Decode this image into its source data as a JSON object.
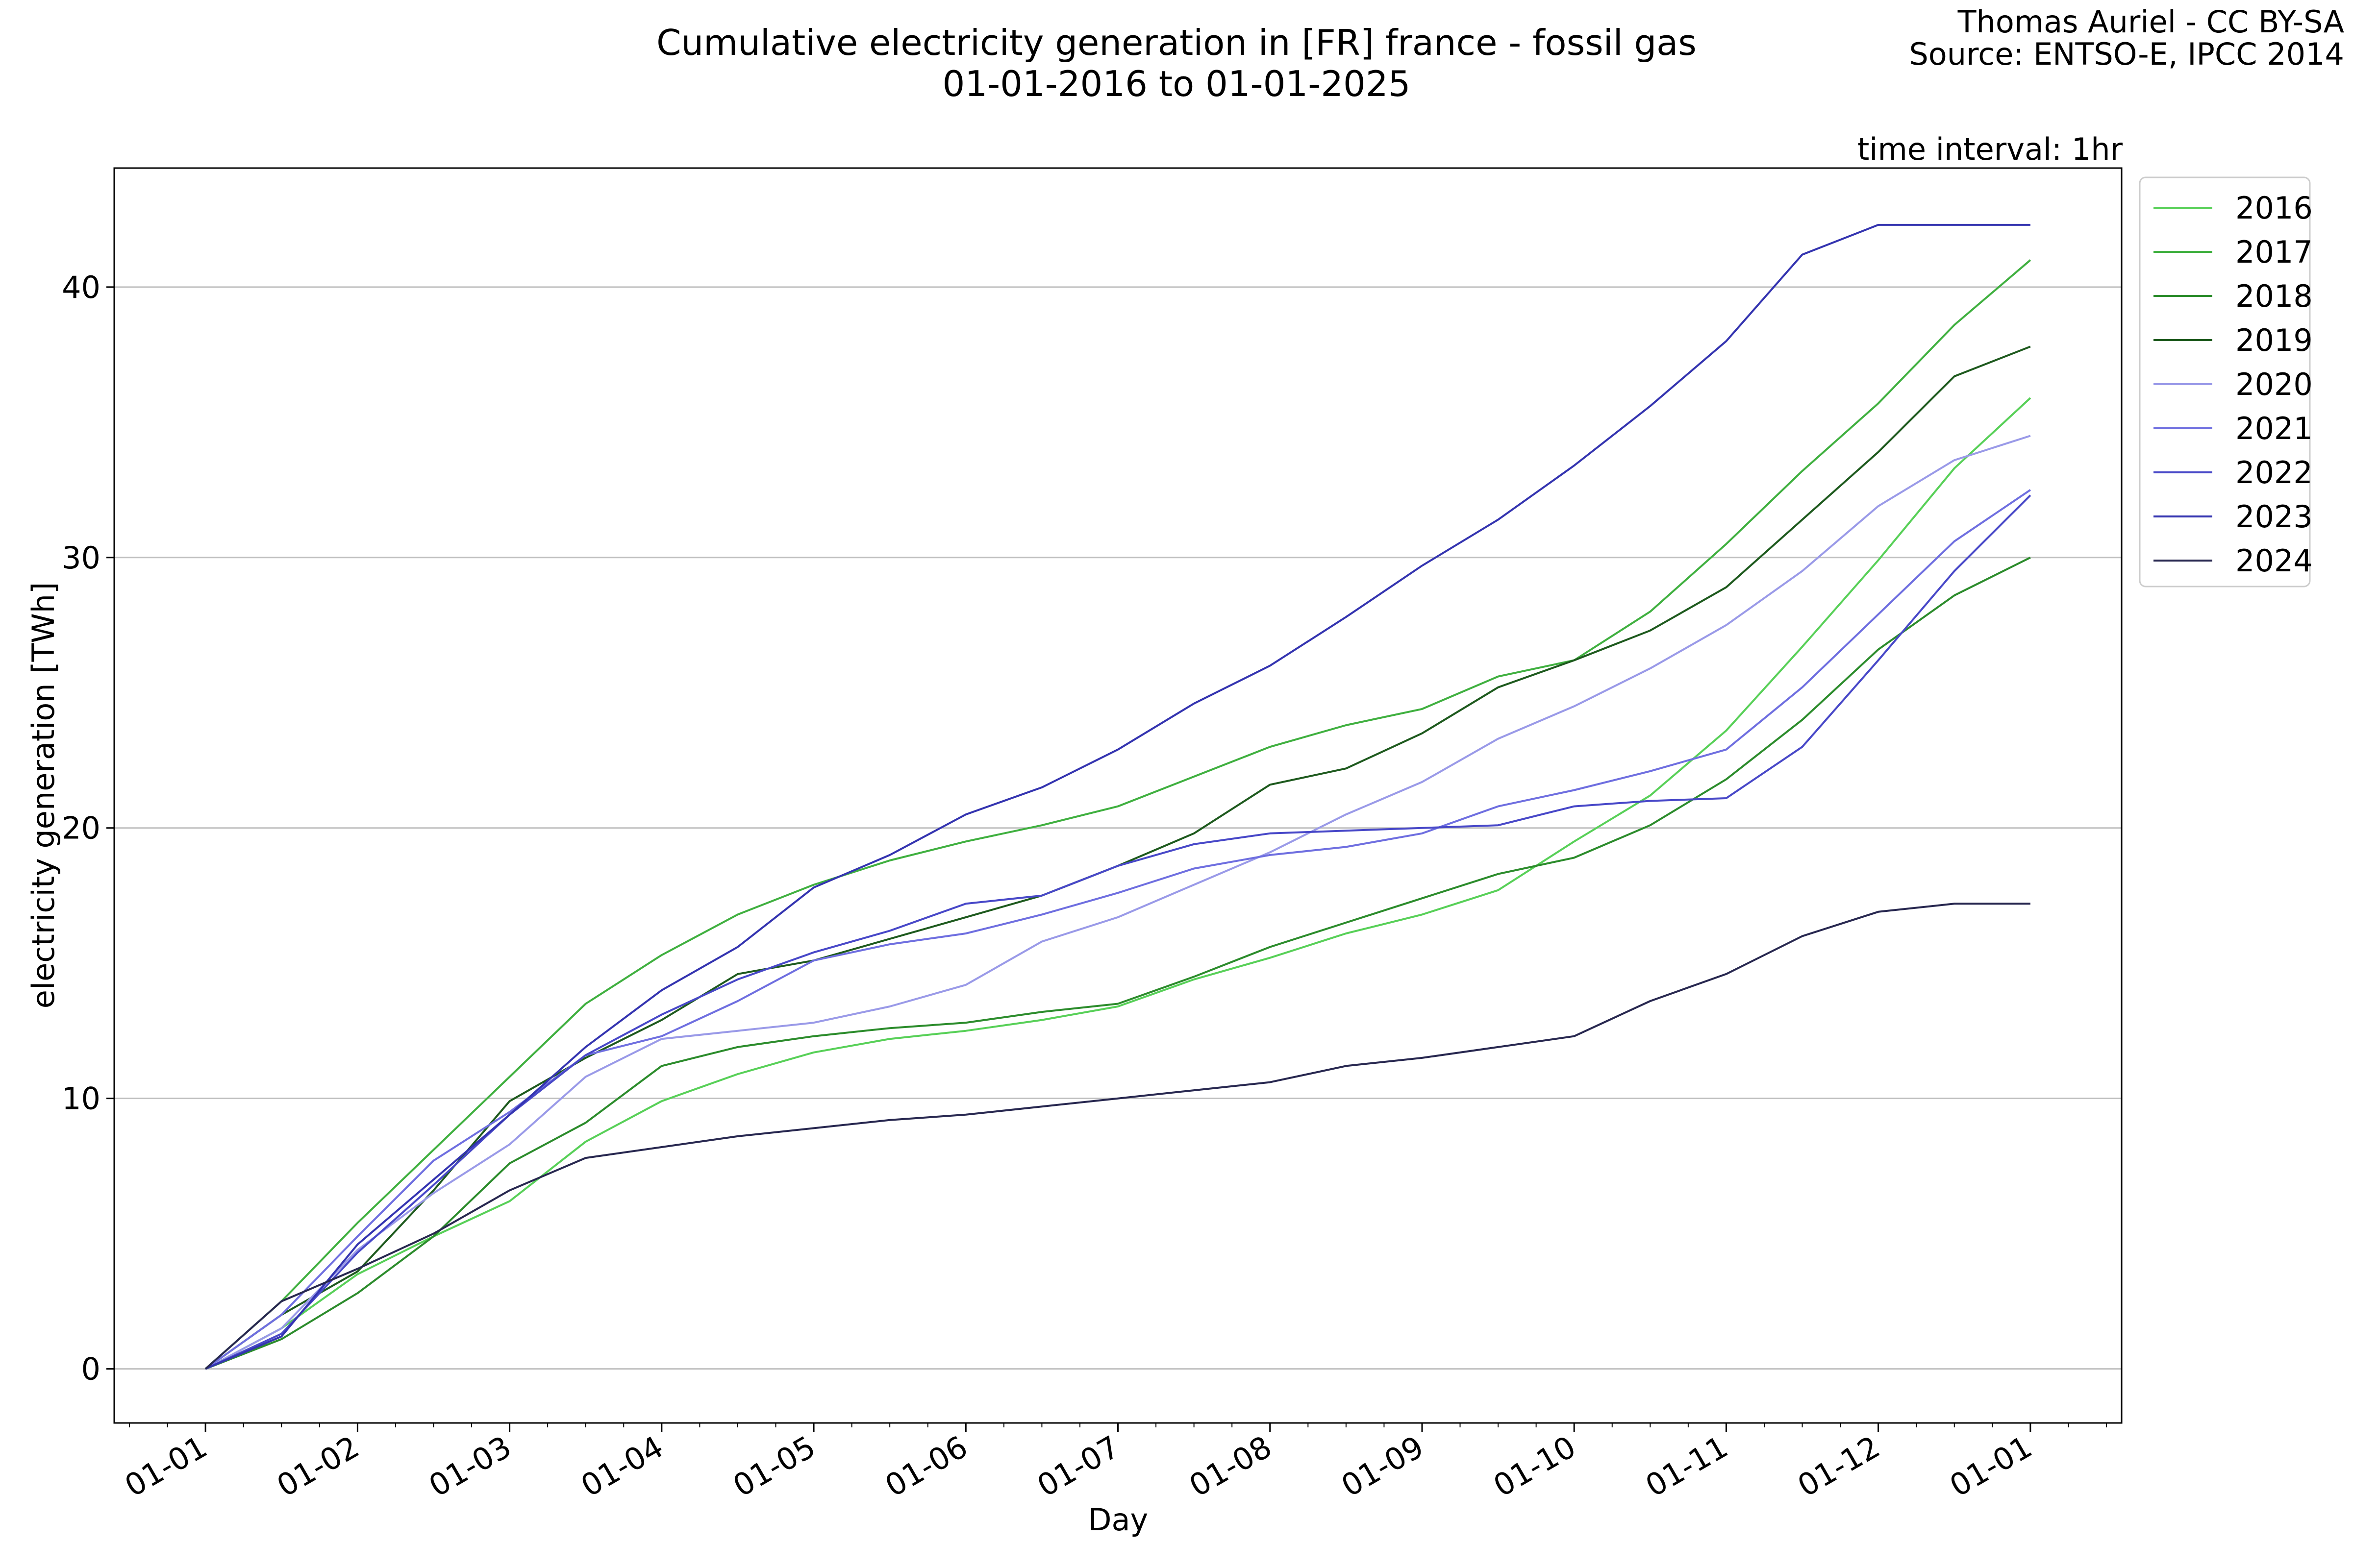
{
  "header": {
    "title_line1": "Cumulative electricity generation in [FR] france - fossil gas",
    "title_line2": "01-01-2016 to 01-01-2025",
    "credit_line1": "Thomas Auriel - CC BY-SA",
    "credit_line2": "Source: ENTSO-E, IPCC 2014",
    "interval_label": "time interval: 1hr"
  },
  "chart_data": {
    "type": "line",
    "title": "Cumulative electricity generation in [FR] france - fossil gas",
    "subtitle": "01-01-2016 to 01-01-2025",
    "xlabel": "Day",
    "ylabel": "electricity generation [TWh]",
    "xlim": [
      -0.6,
      12.6
    ],
    "ylim": [
      -2.0,
      44.4
    ],
    "x_ticks": [
      "01-01",
      "01-02",
      "01-03",
      "01-04",
      "01-05",
      "01-06",
      "01-07",
      "01-08",
      "01-09",
      "01-10",
      "01-11",
      "01-12",
      "01-01"
    ],
    "y_ticks": [
      0,
      10,
      20,
      30,
      40
    ],
    "grid": "horizontal",
    "legend_position": "outside-top-right",
    "x_points": [
      0,
      0.5,
      1,
      1.5,
      2,
      2.5,
      3,
      3.5,
      4,
      4.5,
      5,
      5.5,
      6,
      6.5,
      7,
      7.5,
      8,
      8.5,
      9,
      9.5,
      10,
      10.5,
      11,
      11.5,
      12
    ],
    "series": [
      {
        "name": "2016",
        "color": "#58d058",
        "values": [
          0,
          1.5,
          3.5,
          4.9,
          6.2,
          8.4,
          9.9,
          10.9,
          11.7,
          12.2,
          12.5,
          12.9,
          13.4,
          14.4,
          15.2,
          16.1,
          16.8,
          17.7,
          19.5,
          21.2,
          23.6,
          26.7,
          29.9,
          33.3,
          35.9
        ]
      },
      {
        "name": "2017",
        "color": "#40b040",
        "values": [
          0,
          2.5,
          5.4,
          8.1,
          10.8,
          13.5,
          15.3,
          16.8,
          17.9,
          18.8,
          19.5,
          20.1,
          20.8,
          21.9,
          23.0,
          23.8,
          24.4,
          25.6,
          26.2,
          28.0,
          30.5,
          33.2,
          35.7,
          38.6,
          41.0
        ]
      },
      {
        "name": "2018",
        "color": "#2c8c2c",
        "values": [
          0,
          1.1,
          2.8,
          4.9,
          7.6,
          9.1,
          11.2,
          11.9,
          12.3,
          12.6,
          12.8,
          13.2,
          13.5,
          14.5,
          15.6,
          16.5,
          17.4,
          18.3,
          18.9,
          20.1,
          21.8,
          24.0,
          26.6,
          28.6,
          30.0
        ]
      },
      {
        "name": "2019",
        "color": "#1e5a1e",
        "values": [
          0,
          2.0,
          3.6,
          6.6,
          9.9,
          11.5,
          12.9,
          14.6,
          15.1,
          15.9,
          16.7,
          17.5,
          18.6,
          19.8,
          21.6,
          22.2,
          23.5,
          25.2,
          26.2,
          27.3,
          28.9,
          31.4,
          33.9,
          36.7,
          37.8
        ]
      },
      {
        "name": "2020",
        "color": "#9a9ae8",
        "values": [
          0,
          1.5,
          4.4,
          6.5,
          8.3,
          10.8,
          12.2,
          12.5,
          12.8,
          13.4,
          14.2,
          15.8,
          16.7,
          17.9,
          19.1,
          20.5,
          21.7,
          23.3,
          24.5,
          25.9,
          27.5,
          29.5,
          31.9,
          33.6,
          34.5
        ]
      },
      {
        "name": "2021",
        "color": "#6f6fe0",
        "values": [
          0,
          2.0,
          4.9,
          7.7,
          9.5,
          11.6,
          12.3,
          13.6,
          15.1,
          15.7,
          16.1,
          16.8,
          17.6,
          18.5,
          19.0,
          19.3,
          19.8,
          20.8,
          21.4,
          22.1,
          22.9,
          25.2,
          27.9,
          30.6,
          32.5
        ]
      },
      {
        "name": "2022",
        "color": "#4848c8",
        "values": [
          0,
          1.3,
          4.3,
          6.8,
          9.4,
          11.6,
          13.1,
          14.4,
          15.4,
          16.2,
          17.2,
          17.5,
          18.6,
          19.4,
          19.8,
          19.9,
          20.0,
          20.1,
          20.8,
          21.0,
          21.1,
          23.0,
          26.2,
          29.5,
          32.3
        ]
      },
      {
        "name": "2023",
        "color": "#3434b0",
        "values": [
          0,
          1.2,
          4.6,
          7.0,
          9.4,
          11.9,
          14.0,
          15.6,
          17.8,
          19.0,
          20.5,
          21.5,
          22.9,
          24.6,
          26.0,
          27.8,
          29.7,
          31.4,
          33.4,
          35.6,
          38.0,
          41.2,
          42.3,
          42.3,
          42.3
        ]
      },
      {
        "name": "2024",
        "color": "#282850",
        "values": [
          0,
          2.5,
          3.7,
          5.0,
          6.6,
          7.8,
          8.2,
          8.6,
          8.9,
          9.2,
          9.4,
          9.7,
          10.0,
          10.3,
          10.6,
          11.2,
          11.5,
          11.9,
          12.3,
          13.6,
          14.6,
          16.0,
          16.9,
          17.2,
          17.2
        ]
      }
    ]
  }
}
